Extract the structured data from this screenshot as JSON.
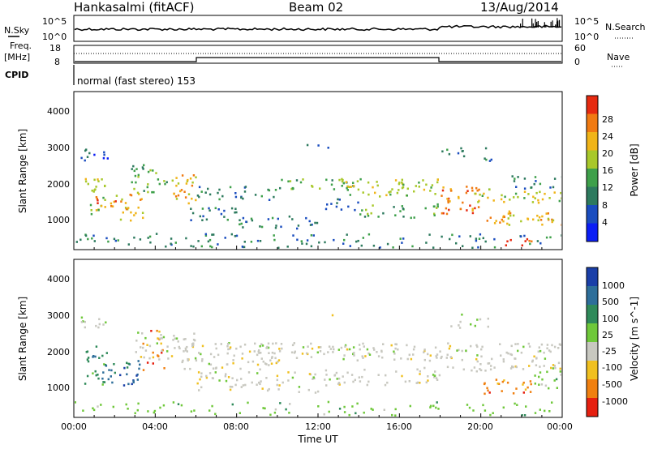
{
  "header": {
    "station": "Hankasalmi (fitACF)",
    "beam": "Beam 02",
    "date": "13/Aug/2014"
  },
  "top_panel": {
    "left_label": "N.Sky",
    "left_ticks": [
      "10^5",
      "10^0"
    ],
    "right_label": "N.Search",
    "right_ticks": [
      "10^5",
      "10^0"
    ]
  },
  "freq_panel": {
    "label_line1": "Freq.",
    "label_line2": "[MHz]",
    "left_ticks": [
      "18",
      "8"
    ],
    "right_ticks": [
      "60",
      "0"
    ],
    "right_label": "Nave",
    "cpid_label": "CPID",
    "mode_text": "normal (fast stereo) 153"
  },
  "power_panel": {
    "ylabel": "Slant Range [km]",
    "y_ticks": [
      "4000",
      "3000",
      "2000",
      "1000"
    ],
    "colorbar_label": "Power [dB]",
    "colorbar_ticks": [
      "28",
      "24",
      "20",
      "16",
      "12",
      "8",
      "4"
    ],
    "colors": [
      "#0b1ef5",
      "#1a4dbf",
      "#2d7a5e",
      "#3ea04a",
      "#a8c82a",
      "#f0b418",
      "#f07a12",
      "#e62a10"
    ]
  },
  "velocity_panel": {
    "ylabel": "Slant Range [km]",
    "y_ticks": [
      "4000",
      "3000",
      "2000",
      "1000"
    ],
    "colorbar_label": "Velocity [m s^-1]",
    "colorbar_ticks": [
      "1000",
      "500",
      "100",
      "25",
      "-25",
      "-100",
      "-500",
      "-1000"
    ],
    "colors": [
      "#1a3fa8",
      "#2d6e9a",
      "#2f8a5a",
      "#6fc83a",
      "#c8c8c0",
      "#f0c020",
      "#f08010",
      "#e62010"
    ]
  },
  "x_axis": {
    "ticks": [
      "00:00",
      "04:00",
      "08:00",
      "12:00",
      "16:00",
      "20:00",
      "00:00"
    ],
    "label": "Time UT"
  },
  "chart_data": {
    "type": "heatmap",
    "title": "Hankasalmi (fitACF) Beam 02 13/Aug/2014",
    "xlabel": "Time UT",
    "ylabel": "Slant Range [km]",
    "xlim": [
      "00:00",
      "24:00"
    ],
    "ylim": [
      200,
      4600
    ],
    "power_range_db": [
      0,
      30
    ],
    "velocity_range_ms": [
      -1000,
      1000
    ],
    "mode": "normal (fast stereo) 153"
  }
}
